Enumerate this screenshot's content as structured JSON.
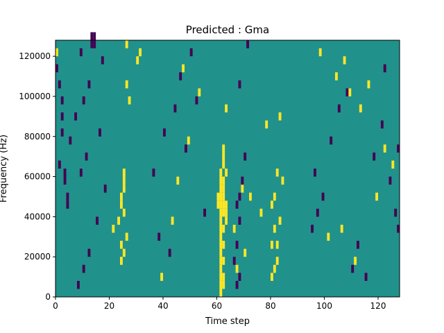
{
  "chart_data": {
    "type": "heatmap",
    "title": "Predicted : Gma",
    "xlabel": "Time step",
    "ylabel": "Frequency (Hz)",
    "xlim": [
      0,
      128
    ],
    "ylim": [
      0,
      128000
    ],
    "xticks": [
      0,
      20,
      40,
      60,
      80,
      100,
      120
    ],
    "yticks": [
      0,
      20000,
      40000,
      60000,
      80000,
      100000,
      120000
    ],
    "xtick_labels": [
      "0",
      "20",
      "40",
      "60",
      "80",
      "100",
      "120"
    ],
    "ytick_labels": [
      "0",
      "20000",
      "40000",
      "60000",
      "80000",
      "100000",
      "120000"
    ],
    "grid": false,
    "cell_size": {
      "time_steps": 1,
      "hz": 4000
    },
    "value_levels": [
      -1,
      0,
      1
    ],
    "colormap": {
      "-1": "#440154",
      "0": "#21918c",
      "1": "#fde725"
    },
    "background_value": 0,
    "cells": [
      [
        0,
        30,
        1
      ],
      [
        0,
        28,
        -1
      ],
      [
        1,
        26,
        -1
      ],
      [
        2,
        24,
        -1
      ],
      [
        2,
        22,
        -1
      ],
      [
        2,
        20,
        -1
      ],
      [
        1,
        16,
        -1
      ],
      [
        3,
        15,
        -1
      ],
      [
        3,
        14,
        -1
      ],
      [
        4,
        12,
        -1
      ],
      [
        4,
        11,
        -1
      ],
      [
        61,
        0,
        1
      ],
      [
        61,
        1,
        1
      ],
      [
        61,
        2,
        1
      ],
      [
        61,
        3,
        1
      ],
      [
        61,
        4,
        1
      ],
      [
        61,
        5,
        1
      ],
      [
        61,
        6,
        1
      ],
      [
        61,
        7,
        1
      ],
      [
        61,
        8,
        1
      ],
      [
        61,
        9,
        1
      ],
      [
        61,
        10,
        1
      ],
      [
        61,
        11,
        1
      ],
      [
        61,
        12,
        1
      ],
      [
        61,
        13,
        1
      ],
      [
        61,
        14,
        1
      ],
      [
        61,
        15,
        1
      ],
      [
        62,
        1,
        1
      ],
      [
        62,
        2,
        1
      ],
      [
        62,
        4,
        1
      ],
      [
        62,
        6,
        1
      ],
      [
        62,
        8,
        1
      ],
      [
        62,
        10,
        1
      ],
      [
        62,
        11,
        1
      ],
      [
        62,
        12,
        1
      ],
      [
        62,
        13,
        1
      ],
      [
        62,
        14,
        1
      ],
      [
        62,
        16,
        1
      ],
      [
        62,
        17,
        1
      ],
      [
        62,
        18,
        1
      ],
      [
        63,
        9,
        1
      ],
      [
        63,
        10,
        1
      ],
      [
        63,
        11,
        1
      ],
      [
        60,
        12,
        1
      ],
      [
        60,
        11,
        1
      ],
      [
        63,
        15,
        1
      ],
      [
        63,
        23,
        1
      ],
      [
        24,
        11,
        1
      ],
      [
        24,
        12,
        1
      ],
      [
        25,
        13,
        1
      ],
      [
        25,
        14,
        1
      ],
      [
        25,
        15,
        1
      ],
      [
        24,
        4,
        1
      ],
      [
        25,
        5,
        1
      ],
      [
        24,
        6,
        1
      ],
      [
        26,
        7,
        1
      ],
      [
        23,
        9,
        1
      ],
      [
        25,
        10,
        1
      ],
      [
        26,
        26,
        1
      ],
      [
        30,
        29,
        1
      ],
      [
        27,
        24,
        1
      ],
      [
        21,
        8,
        1
      ],
      [
        31,
        30,
        1
      ],
      [
        26,
        31,
        1
      ],
      [
        80,
        2,
        1
      ],
      [
        81,
        3,
        1
      ],
      [
        82,
        4,
        1
      ],
      [
        80,
        6,
        1
      ],
      [
        82,
        6,
        1
      ],
      [
        81,
        8,
        1
      ],
      [
        83,
        9,
        1
      ],
      [
        80,
        11,
        1
      ],
      [
        81,
        12,
        1
      ],
      [
        82,
        15,
        1
      ],
      [
        84,
        14,
        1
      ],
      [
        83,
        22,
        1
      ],
      [
        67,
        3,
        1
      ],
      [
        70,
        5,
        1
      ],
      [
        66,
        8,
        1
      ],
      [
        72,
        12,
        1
      ],
      [
        69,
        13,
        1
      ],
      [
        78,
        21,
        1
      ],
      [
        76,
        10,
        1
      ],
      [
        13,
        31,
        -1
      ],
      [
        14,
        31,
        -1
      ],
      [
        13,
        32,
        -1
      ],
      [
        14,
        32,
        -1
      ],
      [
        8,
        1,
        -1
      ],
      [
        10,
        3,
        -1
      ],
      [
        12,
        5,
        -1
      ],
      [
        15,
        9,
        -1
      ],
      [
        18,
        13,
        -1
      ],
      [
        9,
        15,
        -1
      ],
      [
        11,
        17,
        -1
      ],
      [
        16,
        20,
        -1
      ],
      [
        12,
        26,
        -1
      ],
      [
        17,
        29,
        -1
      ],
      [
        9,
        30,
        -1
      ],
      [
        5,
        19,
        -1
      ],
      [
        7,
        22,
        -1
      ],
      [
        10,
        24,
        -1
      ],
      [
        67,
        1,
        -1
      ],
      [
        68,
        2,
        -1
      ],
      [
        66,
        4,
        -1
      ],
      [
        67,
        6,
        -1
      ],
      [
        68,
        9,
        -1
      ],
      [
        67,
        11,
        -1
      ],
      [
        68,
        12,
        -1
      ],
      [
        69,
        14,
        -1
      ],
      [
        70,
        17,
        -1
      ],
      [
        68,
        26,
        -1
      ],
      [
        71,
        31,
        -1
      ],
      [
        95,
        8,
        -1
      ],
      [
        97,
        10,
        -1
      ],
      [
        99,
        12,
        -1
      ],
      [
        96,
        15,
        -1
      ],
      [
        102,
        19,
        -1
      ],
      [
        105,
        23,
        -1
      ],
      [
        108,
        25,
        -1
      ],
      [
        110,
        3,
        -1
      ],
      [
        112,
        6,
        -1
      ],
      [
        115,
        2,
        -1
      ],
      [
        118,
        17,
        -1
      ],
      [
        121,
        21,
        -1
      ],
      [
        124,
        14,
        -1
      ],
      [
        126,
        10,
        -1
      ],
      [
        127,
        8,
        -1
      ],
      [
        127,
        18,
        -1
      ],
      [
        122,
        28,
        -1
      ],
      [
        104,
        27,
        1
      ],
      [
        107,
        29,
        1
      ],
      [
        109,
        25,
        1
      ],
      [
        113,
        23,
        1
      ],
      [
        116,
        26,
        1
      ],
      [
        119,
        12,
        1
      ],
      [
        122,
        18,
        1
      ],
      [
        125,
        16,
        1
      ],
      [
        111,
        4,
        1
      ],
      [
        106,
        8,
        1
      ],
      [
        101,
        7,
        1
      ],
      [
        98,
        30,
        1
      ],
      [
        36,
        15,
        -1
      ],
      [
        40,
        20,
        -1
      ],
      [
        44,
        23,
        -1
      ],
      [
        48,
        18,
        -1
      ],
      [
        52,
        24,
        -1
      ],
      [
        55,
        10,
        -1
      ],
      [
        42,
        5,
        -1
      ],
      [
        38,
        7,
        -1
      ],
      [
        46,
        27,
        -1
      ],
      [
        50,
        30,
        -1
      ],
      [
        39,
        2,
        1
      ],
      [
        45,
        14,
        1
      ],
      [
        49,
        19,
        1
      ],
      [
        53,
        25,
        1
      ],
      [
        43,
        9,
        1
      ],
      [
        47,
        28,
        1
      ]
    ]
  }
}
